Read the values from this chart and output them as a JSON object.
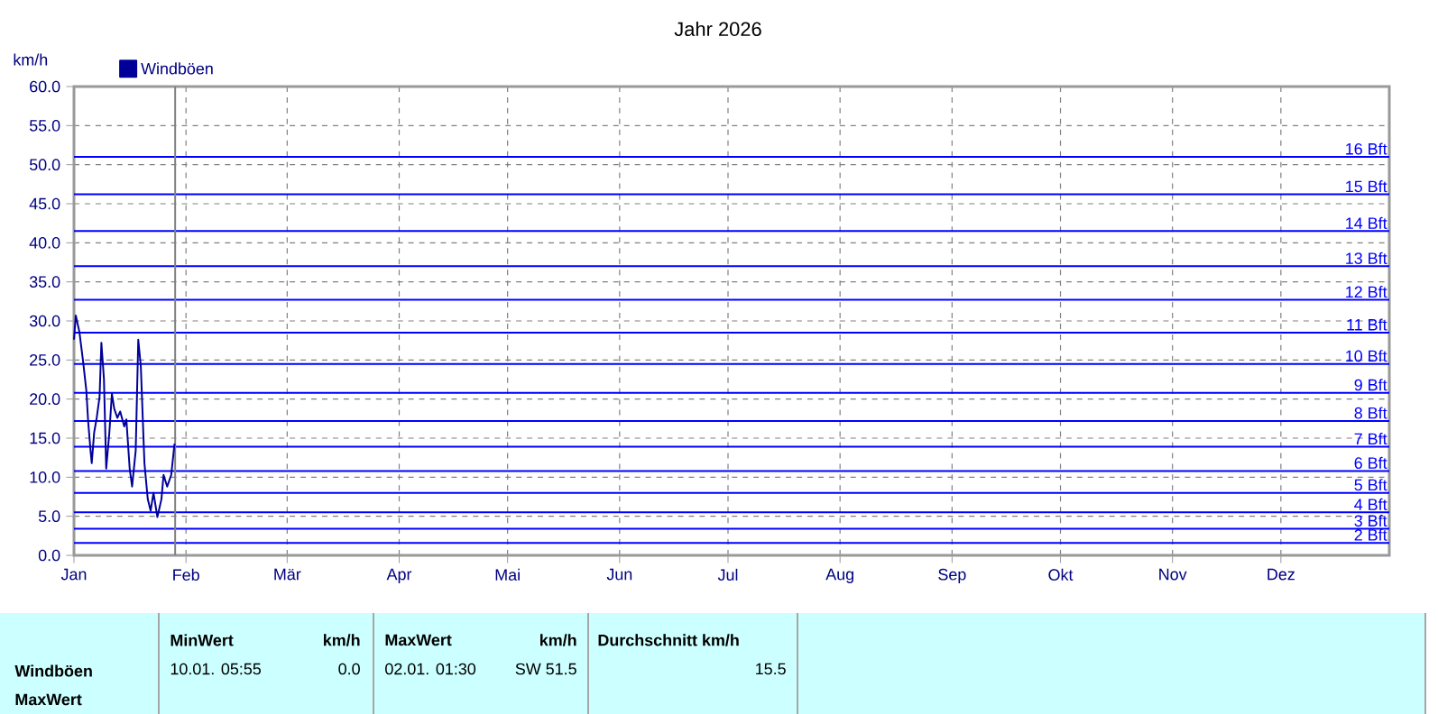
{
  "chart_data": {
    "type": "line",
    "title": "Jahr 2026",
    "ylabel": "km/h",
    "xlim": [
      "2026-01-01T00:00",
      "2026-12-31T00:00"
    ],
    "xticks": [
      {
        "value": "2026-01-01T00:00",
        "label": "Jan"
      },
      {
        "value": "2026-02-01T00:00",
        "label": "Feb"
      },
      {
        "value": "2026-03-01T00:00",
        "label": "Mär"
      },
      {
        "value": "2026-04-01T00:00",
        "label": "Apr"
      },
      {
        "value": "2026-05-01T00:00",
        "label": "Mai"
      },
      {
        "value": "2026-06-01T00:00",
        "label": "Jun"
      },
      {
        "value": "2026-07-01T00:00",
        "label": "Jul"
      },
      {
        "value": "2026-08-01T00:00",
        "label": "Aug"
      },
      {
        "value": "2026-09-01T00:00",
        "label": "Sep"
      },
      {
        "value": "2026-10-01T00:00",
        "label": "Okt"
      },
      {
        "value": "2026-11-01T00:00",
        "label": "Nov"
      },
      {
        "value": "2026-12-01T00:00",
        "label": "Dez"
      }
    ],
    "ylim": [
      0,
      60
    ],
    "yticks": [
      {
        "value": 0,
        "label": "0.0"
      },
      {
        "value": 5,
        "label": "5.0"
      },
      {
        "value": 10,
        "label": "10.0"
      },
      {
        "value": 15,
        "label": "15.0"
      },
      {
        "value": 20,
        "label": "20.0"
      },
      {
        "value": 25,
        "label": "25.0"
      },
      {
        "value": 30,
        "label": "30.0"
      },
      {
        "value": 35,
        "label": "35.0"
      },
      {
        "value": 40,
        "label": "40.0"
      },
      {
        "value": 45,
        "label": "45.0"
      },
      {
        "value": 50,
        "label": "50.0"
      },
      {
        "value": 55,
        "label": "55.0"
      },
      {
        "value": 60,
        "label": "60.0"
      }
    ],
    "grid": true,
    "legend": "top left",
    "series": [
      {
        "name": "Windböen",
        "color": "#000099",
        "x": [
          "2026-01-01T00:00",
          "2026-01-01T12:00",
          "2026-01-02T12:00",
          "2026-01-03T12:00",
          "2026-01-04T10:00",
          "2026-01-04T22:00",
          "2026-01-05T14:00",
          "2026-01-05T22:00",
          "2026-01-06T14:00",
          "2026-01-07T07:00",
          "2026-01-08T02:00",
          "2026-01-08T14:00",
          "2026-01-09T07:00",
          "2026-01-09T22:00",
          "2026-01-10T19:00",
          "2026-01-11T12:00",
          "2026-01-12T03:00",
          "2026-01-13T00:00",
          "2026-01-13T19:00",
          "2026-01-14T22:00",
          "2026-01-15T12:00",
          "2026-01-16T10:00",
          "2026-01-17T02:00",
          "2026-01-18T02:00",
          "2026-01-18T19:00",
          "2026-01-19T12:00",
          "2026-01-20T12:00",
          "2026-01-21T10:00",
          "2026-01-22T05:00",
          "2026-01-23T00:00",
          "2026-01-24T02:00",
          "2026-01-25T05:00",
          "2026-01-25T19:00",
          "2026-01-26T19:00",
          "2026-01-27T22:00",
          "2026-01-28T20:00"
        ],
        "values": [
          27.6,
          30.7,
          28.6,
          24.9,
          21.1,
          17.2,
          13.4,
          11.8,
          15.7,
          17.6,
          20.3,
          27.2,
          22.6,
          11.1,
          15.7,
          20.7,
          18.8,
          17.6,
          18.4,
          16.5,
          17.4,
          11.1,
          8.8,
          13.4,
          27.6,
          24.2,
          11.8,
          7.2,
          5.7,
          8.0,
          4.9,
          7.2,
          10.3,
          8.8,
          10.3,
          14.3
        ]
      }
    ],
    "ref_lines": [
      {
        "axis": "y",
        "value": 1.6,
        "label": "2 Bft",
        "color": "#0000ff"
      },
      {
        "axis": "y",
        "value": 3.4,
        "label": "3 Bft",
        "color": "#0000ff"
      },
      {
        "axis": "y",
        "value": 5.5,
        "label": "4 Bft",
        "color": "#0000ff"
      },
      {
        "axis": "y",
        "value": 8.0,
        "label": "5 Bft",
        "color": "#0000ff"
      },
      {
        "axis": "y",
        "value": 10.8,
        "label": "6 Bft",
        "color": "#0000ff"
      },
      {
        "axis": "y",
        "value": 13.9,
        "label": "7 Bft",
        "color": "#0000ff"
      },
      {
        "axis": "y",
        "value": 17.2,
        "label": "8 Bft",
        "color": "#0000ff"
      },
      {
        "axis": "y",
        "value": 20.8,
        "label": "9 Bft",
        "color": "#0000ff"
      },
      {
        "axis": "y",
        "value": 24.5,
        "label": "10 Bft",
        "color": "#0000ff"
      },
      {
        "axis": "y",
        "value": 28.5,
        "label": "11 Bft",
        "color": "#0000ff"
      },
      {
        "axis": "y",
        "value": 32.7,
        "label": "12 Bft",
        "color": "#0000ff"
      },
      {
        "axis": "y",
        "value": 37.0,
        "label": "13 Bft",
        "color": "#0000ff"
      },
      {
        "axis": "y",
        "value": 41.5,
        "label": "14 Bft",
        "color": "#0000ff"
      },
      {
        "axis": "y",
        "value": 46.2,
        "label": "15 Bft",
        "color": "#0000ff"
      },
      {
        "axis": "y",
        "value": 51.0,
        "label": "16 Bft",
        "color": "#0000ff"
      },
      {
        "axis": "x",
        "value": "2026-01-29T00:00",
        "color": "#808080"
      }
    ],
    "annotations": [
      "Windböen",
      "MaxWert",
      "MinWert",
      "km/h",
      "10.01. 05:55",
      "0.0",
      "MaxWert",
      "km/h",
      "02.01. 01:30",
      "SW 51.5",
      "Durchschnitt km/h",
      "15.5"
    ]
  }
}
